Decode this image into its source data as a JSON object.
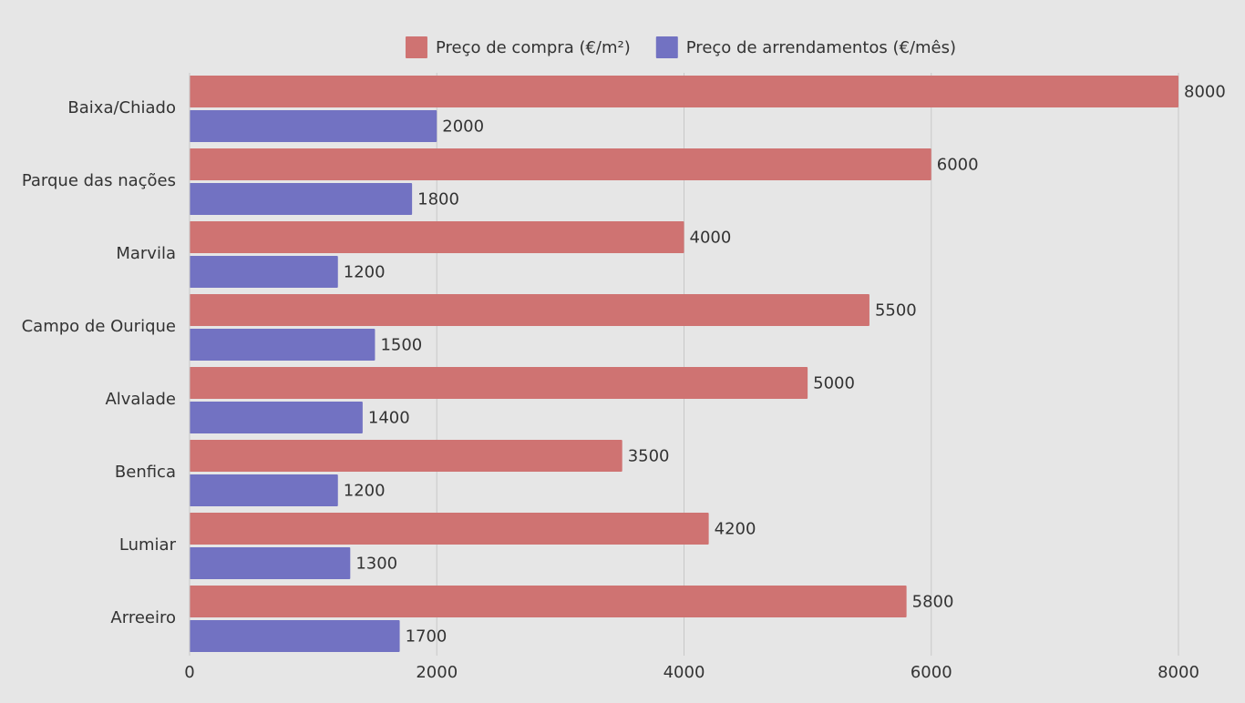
{
  "chart_data": {
    "type": "bar",
    "orientation": "horizontal",
    "categories": [
      "Baixa/Chiado",
      "Parque das nações",
      "Marvila",
      "Campo de Ourique",
      "Alvalade",
      "Benfica",
      "Lumiar",
      "Arreeiro"
    ],
    "series": [
      {
        "name": "Preço de compra (€/m²)",
        "color": "#cf7372",
        "values": [
          8000,
          6000,
          4000,
          5500,
          5000,
          3500,
          4200,
          5800
        ]
      },
      {
        "name": "Preço de arrendamentos (€/mês)",
        "color": "#7272c2",
        "values": [
          2000,
          1800,
          1200,
          1500,
          1400,
          1200,
          1300,
          1700
        ]
      }
    ],
    "xlim": [
      0,
      8000
    ],
    "x_ticks": [
      0,
      2000,
      4000,
      6000,
      8000
    ],
    "x_tick_labels": [
      "0",
      "2000",
      "4000",
      "6000",
      "8000"
    ],
    "grid": true,
    "legend_position": "top",
    "data_labels": true,
    "title": "",
    "xlabel": "",
    "ylabel": ""
  },
  "colors": {
    "background": "#e6e6e6",
    "grid": "#c8c8c8",
    "text": "#333333"
  }
}
